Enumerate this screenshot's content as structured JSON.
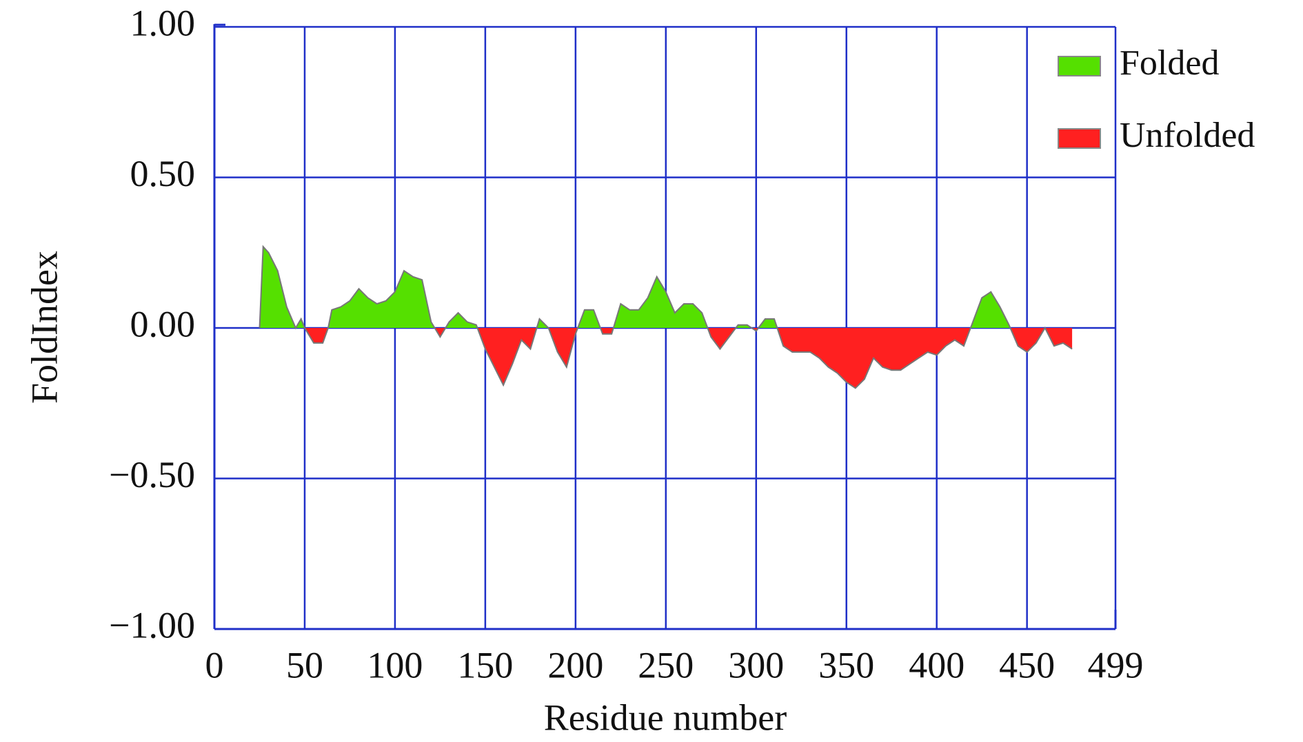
{
  "chart_data": {
    "type": "area",
    "xlabel": "Residue number",
    "ylabel": "FoldIndex",
    "x": [
      25,
      27,
      30,
      35,
      40,
      45,
      48,
      50,
      55,
      60,
      63,
      65,
      70,
      75,
      80,
      85,
      90,
      95,
      100,
      105,
      110,
      115,
      120,
      125,
      130,
      135,
      140,
      145,
      150,
      155,
      160,
      165,
      170,
      175,
      180,
      185,
      190,
      195,
      200,
      205,
      210,
      215,
      220,
      225,
      230,
      235,
      240,
      245,
      250,
      255,
      260,
      265,
      270,
      275,
      280,
      285,
      290,
      295,
      300,
      305,
      310,
      315,
      320,
      325,
      330,
      335,
      340,
      345,
      350,
      355,
      360,
      365,
      370,
      375,
      380,
      385,
      390,
      395,
      400,
      405,
      410,
      415,
      420,
      425,
      430,
      435,
      440,
      445,
      450,
      455,
      460,
      465,
      470,
      475
    ],
    "values": [
      0,
      0.27,
      0.25,
      0.19,
      0.07,
      0.0,
      0.03,
      0.0,
      -0.05,
      -0.05,
      0.0,
      0.06,
      0.07,
      0.09,
      0.13,
      0.1,
      0.08,
      0.09,
      0.12,
      0.19,
      0.17,
      0.16,
      0.02,
      -0.03,
      0.02,
      0.05,
      0.02,
      0.01,
      -0.07,
      -0.13,
      -0.19,
      -0.12,
      -0.04,
      -0.07,
      0.03,
      0.0,
      -0.08,
      -0.13,
      -0.02,
      0.06,
      0.06,
      -0.02,
      -0.02,
      0.08,
      0.06,
      0.06,
      0.1,
      0.17,
      0.12,
      0.05,
      0.08,
      0.08,
      0.05,
      -0.03,
      -0.07,
      -0.03,
      0.01,
      0.01,
      -0.01,
      0.03,
      0.03,
      -0.06,
      -0.08,
      -0.08,
      -0.08,
      -0.1,
      -0.13,
      -0.15,
      -0.18,
      -0.2,
      -0.17,
      -0.1,
      -0.13,
      -0.14,
      -0.14,
      -0.12,
      -0.1,
      -0.08,
      -0.09,
      -0.06,
      -0.04,
      -0.06,
      0.02,
      0.1,
      0.12,
      0.07,
      0.01,
      -0.06,
      -0.08,
      -0.05,
      0.0,
      -0.06,
      -0.05,
      -0.07
    ],
    "legend": [
      {
        "name": "Folded",
        "color": "#55e000"
      },
      {
        "name": "Unfolded",
        "color": "#ff2020"
      }
    ],
    "outline_color": "#777777",
    "grid_color": "#1f2fc8",
    "xlim": [
      0,
      499
    ],
    "xticks": [
      0,
      50,
      100,
      150,
      200,
      250,
      300,
      350,
      400,
      450,
      499
    ],
    "ylim": [
      -1,
      1
    ],
    "yticks": [
      {
        "value": 1,
        "label": "1.00"
      },
      {
        "value": 0.5,
        "label": "0.50"
      },
      {
        "value": 0,
        "label": "0.00"
      },
      {
        "value": -0.5,
        "label": "−0.50"
      },
      {
        "value": -1,
        "label": "−1.00"
      }
    ],
    "grid": true
  }
}
